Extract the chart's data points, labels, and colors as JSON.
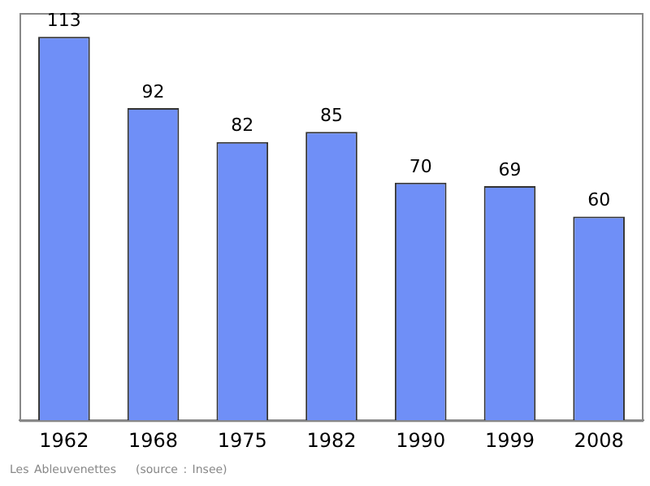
{
  "chart_data": {
    "type": "bar",
    "categories": [
      "1962",
      "1968",
      "1975",
      "1982",
      "1990",
      "1999",
      "2008"
    ],
    "values": [
      113,
      92,
      82,
      85,
      70,
      69,
      60
    ],
    "color": "#6f8ff7",
    "data_labels": true,
    "grid": false,
    "legend": false,
    "annotations": [
      "Les Ableuvenettes",
      "(source : Insee)"
    ]
  }
}
